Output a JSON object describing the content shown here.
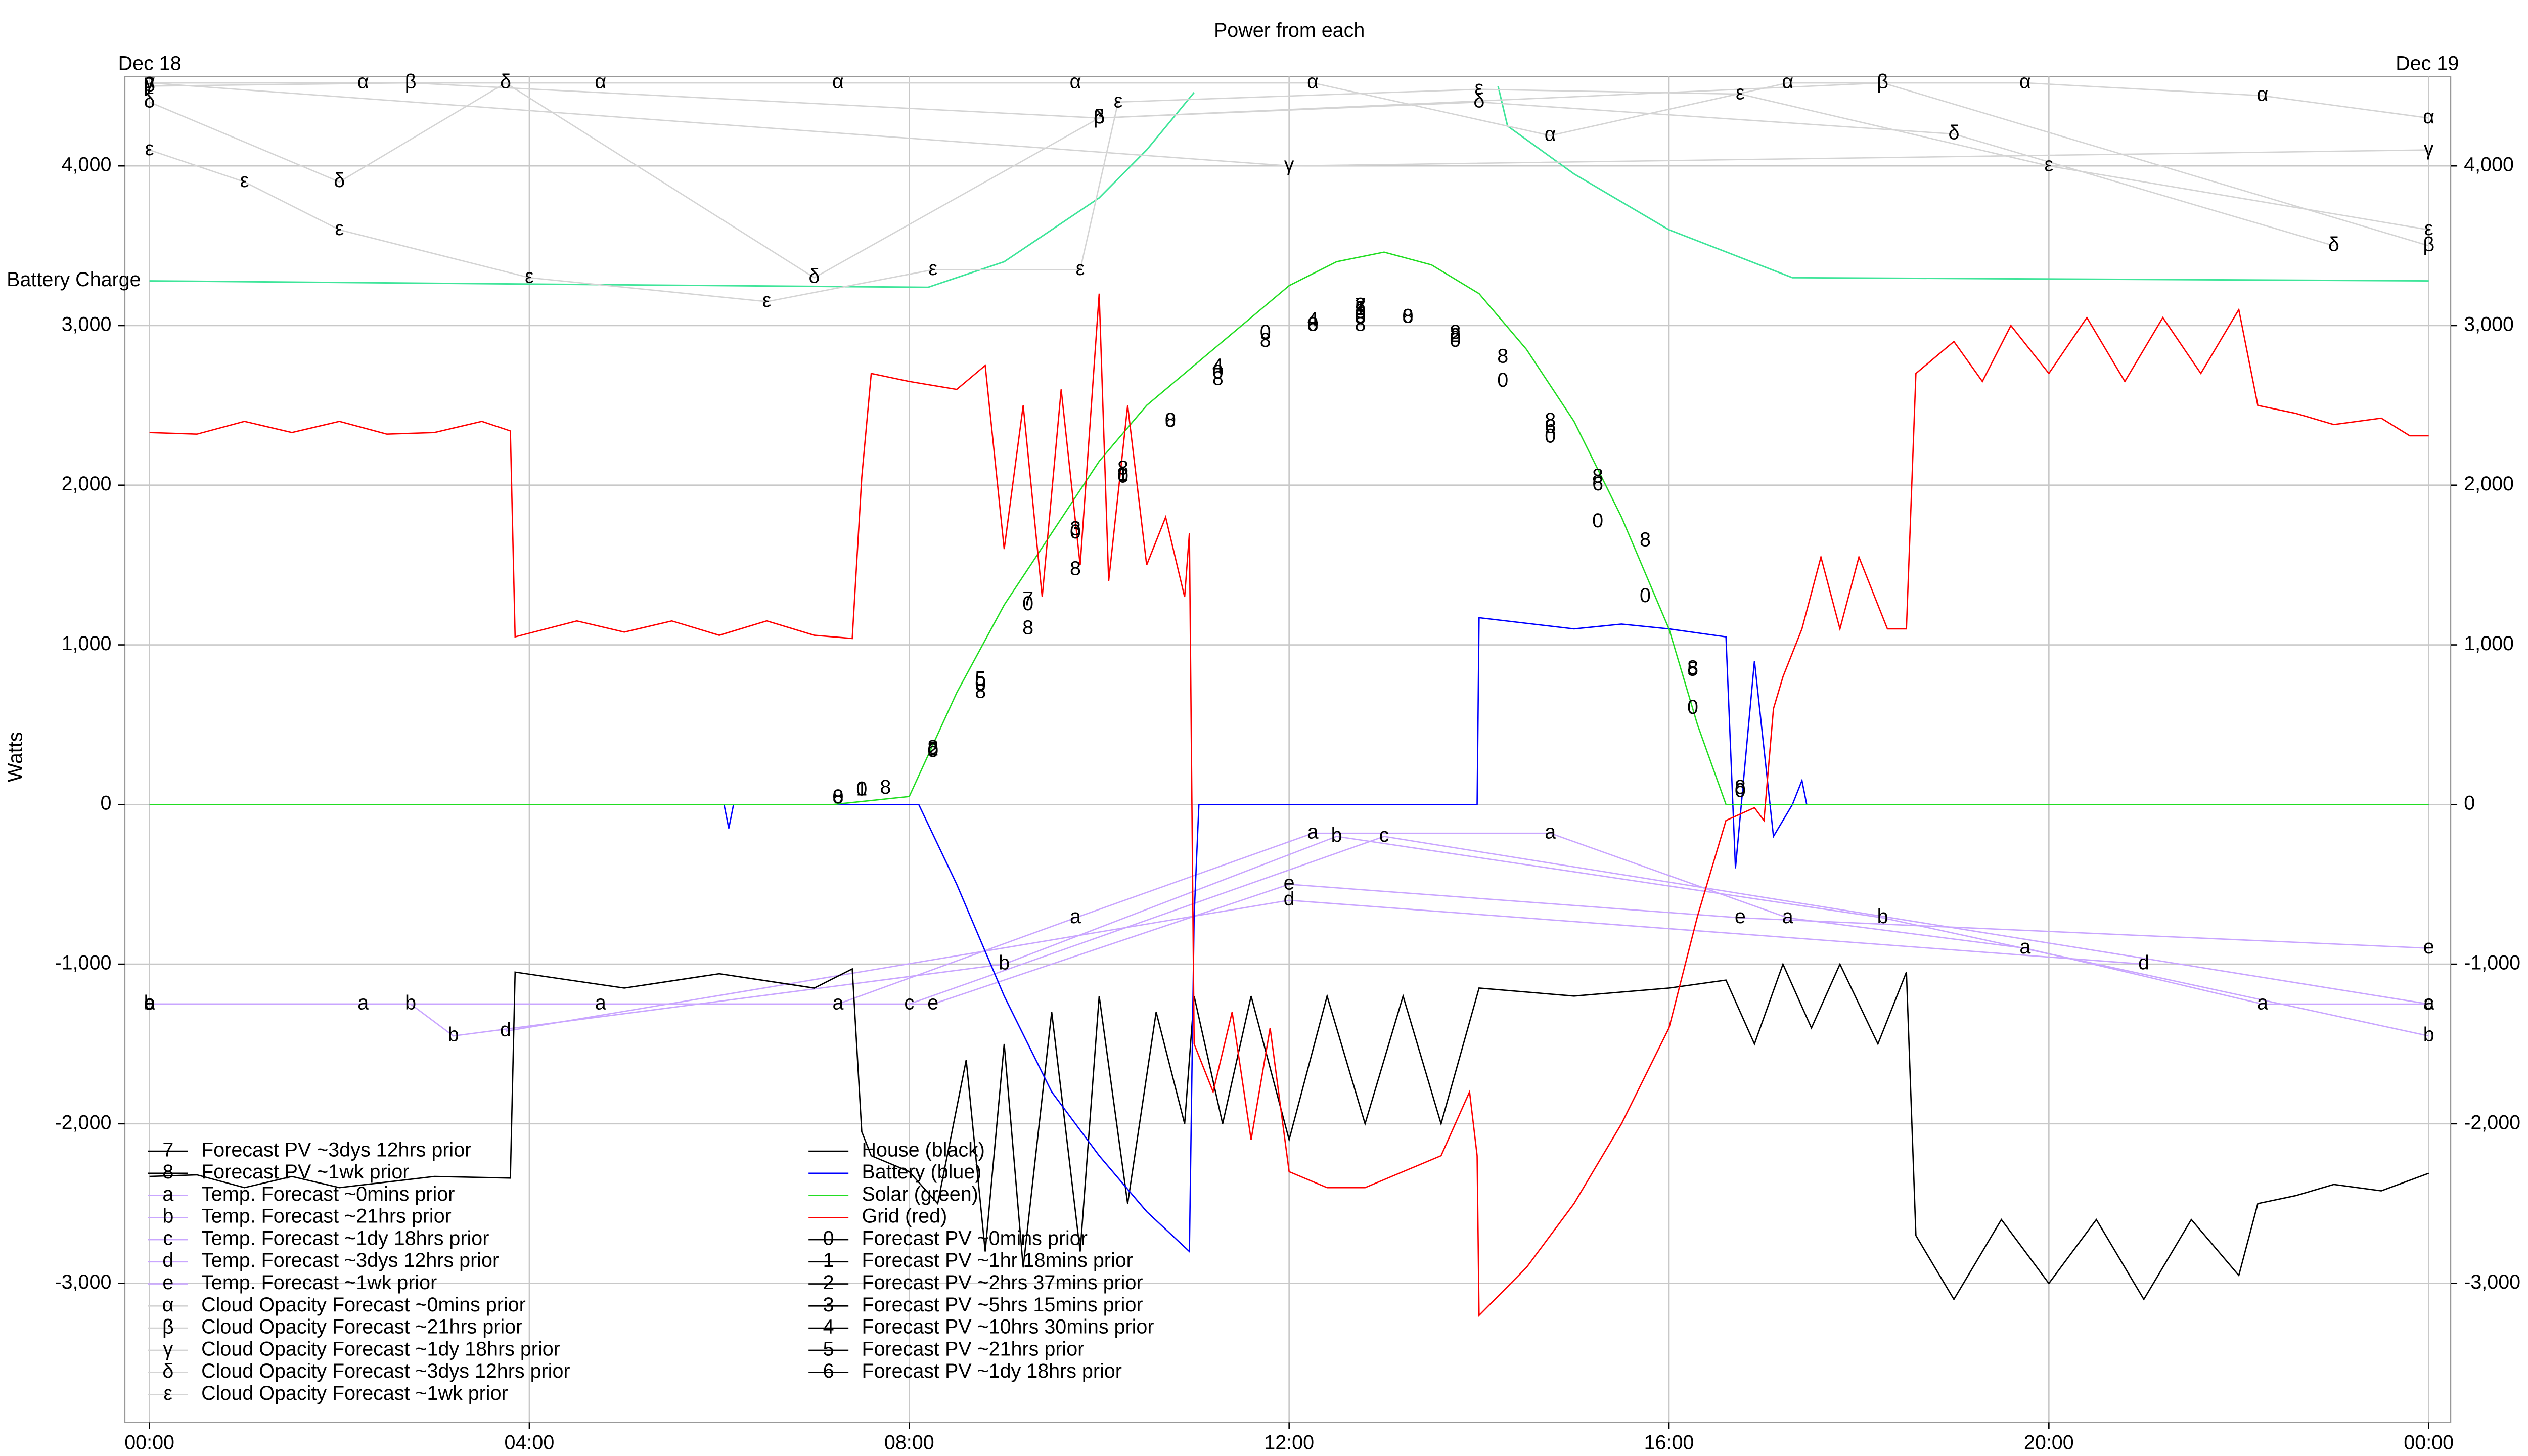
{
  "chart_data": {
    "type": "line",
    "title": "Power from each",
    "y_label": "Watts",
    "date_labels": [
      "Dec 18",
      "Dec 19"
    ],
    "xlim": [
      -0.26,
      24.23
    ],
    "ylim": [
      -3870,
      4560
    ],
    "grid": true,
    "xticks": [
      {
        "value": 0,
        "label": "00:00"
      },
      {
        "value": 4,
        "label": "04:00"
      },
      {
        "value": 8,
        "label": "08:00"
      },
      {
        "value": 12,
        "label": "12:00"
      },
      {
        "value": 16,
        "label": "16:00"
      },
      {
        "value": 20,
        "label": "20:00"
      },
      {
        "value": 24,
        "label": "00:00"
      }
    ],
    "yticks": [
      {
        "value": -3000,
        "label": "-3,000"
      },
      {
        "value": -2000,
        "label": "-2,000"
      },
      {
        "value": -1000,
        "label": "-1,000"
      },
      0,
      {
        "value": 1000,
        "label": "1,000"
      },
      {
        "value": 2000,
        "label": "2,000"
      },
      {
        "value": 3000,
        "label": "3,000"
      },
      {
        "value": 4000,
        "label": "4,000"
      }
    ],
    "battery_charge": {
      "name": "Battery Charge",
      "color": "#3fe59a",
      "x": [
        0,
        4,
        8.2,
        9,
        10,
        10.5,
        11,
        11.1,
        14.2,
        14.3,
        15,
        16,
        17.3,
        24
      ],
      "values": [
        3280,
        3260,
        3240,
        3400,
        3800,
        4100,
        4460,
        null,
        4500,
        4250,
        3950,
        3600,
        3300,
        3280
      ]
    },
    "series": [
      {
        "name": "Forecast PV ~3dys 12hrs prior",
        "marker": "7",
        "color": "#000000",
        "x": [
          9.25,
          12.75
        ],
        "values": [
          1280,
          3120
        ]
      },
      {
        "name": "Forecast PV ~1wk prior",
        "marker": "8",
        "color": "#000000",
        "x": [
          7.25,
          7.75,
          8.25,
          8.75,
          9.25,
          9.75,
          10.25,
          10.75,
          11.25,
          11.75,
          12.25,
          12.75,
          13.25,
          13.75,
          14.25,
          14.75,
          15.25,
          15.75,
          16.25,
          16.75
        ],
        "values": [
          40,
          100,
          350,
          700,
          1100,
          1470,
          2100,
          2400,
          2660,
          2900,
          3000,
          3000,
          3050,
          2950,
          2800,
          2400,
          2050,
          1650,
          850,
          100
        ]
      },
      {
        "name": "Temp. Forecast ~0mins prior",
        "marker": "a",
        "color": "#c9a6ff",
        "x": [
          0,
          2.25,
          4.75,
          7.25,
          9.75,
          12.25,
          14.75,
          17.25,
          19.75,
          22.25,
          24
        ],
        "values": [
          -1250,
          -1250,
          -1250,
          -1250,
          -710,
          -180,
          -180,
          -710,
          -900,
          -1250,
          -1250
        ]
      },
      {
        "name": "Temp. Forecast ~21hrs prior",
        "marker": "b",
        "color": "#c9a6ff",
        "x": [
          0,
          2.75,
          3.2,
          9,
          12.5,
          18.25,
          24
        ],
        "values": [
          -1250,
          -1250,
          -1450,
          -1000,
          -200,
          -710,
          -1450
        ]
      },
      {
        "name": "Temp. Forecast ~1dy 18hrs prior",
        "marker": "c",
        "color": "#c9a6ff",
        "x": [
          0,
          8,
          13,
          24
        ],
        "values": [
          -1250,
          -1250,
          -200,
          -1250
        ]
      },
      {
        "name": "Temp. Forecast ~3dys 12hrs prior",
        "marker": "d",
        "color": "#c9a6ff",
        "x": [
          3.75,
          12,
          21
        ],
        "values": [
          -1420,
          -600,
          -1000
        ]
      },
      {
        "name": "Temp. Forecast ~1wk prior",
        "marker": "e",
        "color": "#c9a6ff",
        "x": [
          0,
          8.25,
          12,
          16.75,
          24
        ],
        "values": [
          -1250,
          -1250,
          -500,
          -710,
          -900
        ]
      },
      {
        "name": "Cloud Opacity Forecast ~0mins prior",
        "marker": "α",
        "color": "#d4d4d4",
        "x": [
          0,
          2.25,
          4.75,
          7.25,
          9.75,
          12.25,
          14.75,
          17.25,
          19.75,
          22.25,
          24
        ],
        "values": [
          4520,
          4520,
          4520,
          4520,
          4520,
          4520,
          4190,
          4520,
          4520,
          4440,
          4300
        ]
      },
      {
        "name": "Cloud Opacity Forecast ~21hrs prior",
        "marker": "β",
        "color": "#d4d4d4",
        "x": [
          0,
          2.75,
          10,
          18.25,
          24
        ],
        "values": [
          4500,
          4520,
          4300,
          4520,
          3500
        ]
      },
      {
        "name": "Cloud Opacity Forecast ~1dy 18hrs prior",
        "marker": "γ",
        "color": "#d4d4d4",
        "x": [
          0,
          12,
          24
        ],
        "values": [
          4520,
          4000,
          4100
        ]
      },
      {
        "name": "Cloud Opacity Forecast ~3dys 12hrs prior",
        "marker": "δ",
        "color": "#d4d4d4",
        "x": [
          0,
          2,
          3.75,
          7,
          10,
          14,
          19,
          23
        ],
        "values": [
          4400,
          3900,
          4520,
          3300,
          4300,
          4400,
          4200,
          3500
        ]
      },
      {
        "name": "Cloud Opacity Forecast ~1wk prior",
        "marker": "ε",
        "color": "#d4d4d4",
        "x": [
          0,
          1,
          2,
          4,
          6.5,
          8.25,
          9.8,
          10.2,
          14,
          16.75,
          20,
          24
        ],
        "values": [
          4100,
          3900,
          3600,
          3300,
          3150,
          3350,
          3350,
          4400,
          4480,
          4450,
          4000,
          3600
        ]
      },
      {
        "name": "House (black)",
        "color": "#000000",
        "x": [
          0,
          0.5,
          1,
          1.5,
          2,
          3,
          3.8,
          3.85,
          5,
          6,
          7,
          7.4,
          7.5,
          7.6,
          8,
          8.3,
          8.6,
          8.8,
          9,
          9.2,
          9.5,
          9.8,
          10,
          10.3,
          10.6,
          10.9,
          11,
          11.3,
          11.6,
          12,
          12.4,
          12.8,
          13.2,
          13.6,
          14,
          15,
          16,
          16.6,
          16.9,
          17.2,
          17.5,
          17.8,
          18.2,
          18.5,
          18.6,
          19,
          19.5,
          20,
          20.5,
          21,
          21.5,
          22,
          22.2,
          22.6,
          23,
          23.5,
          24
        ],
        "values": [
          -2330,
          -2320,
          -2400,
          -2330,
          -2400,
          -2330,
          -2340,
          -1050,
          -1150,
          -1060,
          -1150,
          -1030,
          -2050,
          -2200,
          -2300,
          -2500,
          -1600,
          -2800,
          -1500,
          -2900,
          -1300,
          -2800,
          -1200,
          -2500,
          -1300,
          -2000,
          -1200,
          -2000,
          -1200,
          -2100,
          -1200,
          -2000,
          -1200,
          -2000,
          -1150,
          -1200,
          -1150,
          -1100,
          -1500,
          -1000,
          -1400,
          -1000,
          -1500,
          -1050,
          -2700,
          -3100,
          -2600,
          -3000,
          -2600,
          -3100,
          -2600,
          -2950,
          -2500,
          -2450,
          -2380,
          -2420,
          -2310
        ]
      },
      {
        "name": "Battery (blue)",
        "color": "#0000ff",
        "x": [
          0,
          6.05,
          6.1,
          6.15,
          7.2,
          8.1,
          8.5,
          9,
          9.5,
          10,
          10.5,
          10.95,
          11,
          11.05,
          13.98,
          14,
          15,
          15.5,
          16,
          16.6,
          16.7,
          16.9,
          17.1,
          17.3,
          17.4,
          17.45,
          24
        ],
        "values": [
          0,
          0,
          -150,
          0,
          0,
          0,
          -500,
          -1200,
          -1800,
          -2200,
          -2550,
          -2800,
          -700,
          0,
          0,
          1170,
          1100,
          1130,
          1100,
          1050,
          -400,
          900,
          -200,
          0,
          150,
          0,
          0
        ]
      },
      {
        "name": "Solar (green)",
        "color": "#22dd22",
        "x": [
          0,
          7.2,
          8,
          8.5,
          9,
          9.5,
          10,
          10.5,
          11,
          11.5,
          12,
          12.5,
          13,
          13.5,
          14,
          14.5,
          15,
          15.5,
          16,
          16.3,
          16.6,
          24
        ],
        "values": [
          0,
          0,
          50,
          700,
          1250,
          1700,
          2150,
          2500,
          2750,
          3000,
          3250,
          3400,
          3460,
          3380,
          3200,
          2850,
          2400,
          1800,
          1100,
          500,
          0,
          0
        ]
      },
      {
        "name": "Grid (red)",
        "color": "#ff0000",
        "x": [
          0,
          0.5,
          1,
          1.5,
          2,
          2.5,
          3,
          3.5,
          3.8,
          3.85,
          4.5,
          5,
          5.5,
          6,
          6.5,
          7,
          7.4,
          7.5,
          7.6,
          8,
          8.5,
          8.8,
          9,
          9.2,
          9.4,
          9.6,
          9.8,
          10,
          10.1,
          10.3,
          10.5,
          10.7,
          10.9,
          10.95,
          11,
          11.2,
          11.4,
          11.6,
          11.8,
          12,
          12.4,
          12.8,
          13.2,
          13.6,
          13.9,
          13.98,
          14,
          14.5,
          15,
          15.5,
          16,
          16.3,
          16.6,
          16.9,
          17,
          17.1,
          17.2,
          17.4,
          17.6,
          17.8,
          18,
          18.3,
          18.5,
          18.6,
          19,
          19.3,
          19.6,
          20,
          20.4,
          20.8,
          21.2,
          21.6,
          22,
          22.2,
          22.6,
          23,
          23.5,
          23.8,
          24
        ],
        "values": [
          2330,
          2320,
          2400,
          2330,
          2400,
          2320,
          2330,
          2400,
          2340,
          1050,
          1150,
          1080,
          1150,
          1060,
          1150,
          1060,
          1040,
          2050,
          2700,
          2650,
          2600,
          2750,
          1600,
          2500,
          1300,
          2600,
          1500,
          3200,
          1400,
          2500,
          1500,
          1800,
          1300,
          1700,
          -1500,
          -1800,
          -1300,
          -2100,
          -1400,
          -2300,
          -2400,
          -2400,
          -2300,
          -2200,
          -1800,
          -2200,
          -3200,
          -2900,
          -2500,
          -2000,
          -1400,
          -700,
          -100,
          -20,
          -100,
          600,
          800,
          1100,
          1550,
          1100,
          1550,
          1100,
          1100,
          2700,
          2900,
          2650,
          3000,
          2700,
          3050,
          2650,
          3050,
          2700,
          3100,
          2500,
          2450,
          2380,
          2420,
          2310,
          2310
        ]
      },
      {
        "name": "Forecast PV ~0mins prior",
        "marker": "0",
        "color": "#000000",
        "x": [
          7.25,
          7.5,
          8.25,
          8.75,
          9.25,
          9.75,
          10.25,
          10.75,
          11.25,
          11.75,
          12.25,
          12.75,
          13.25,
          13.75,
          14.25,
          14.75,
          15.25,
          15.75,
          16.25,
          16.75
        ],
        "values": [
          40,
          90,
          330,
          750,
          1250,
          1700,
          2050,
          2400,
          2700,
          2950,
          3000,
          3050,
          3050,
          2900,
          2650,
          2300,
          1770,
          1300,
          600,
          80
        ]
      },
      {
        "name": "Forecast PV ~1hr 18mins prior",
        "marker": "1",
        "color": "#000000",
        "x": [
          7.5,
          10.25,
          12.75
        ],
        "values": [
          90,
          2060,
          3100
        ]
      },
      {
        "name": "Forecast PV ~2hrs 37mins prior",
        "marker": "2",
        "color": "#000000",
        "x": [
          8.25,
          12.75,
          13.75
        ],
        "values": [
          340,
          3120,
          2930
        ]
      },
      {
        "name": "Forecast PV ~5hrs 15mins prior",
        "marker": "3",
        "color": "#000000",
        "x": [
          9.75,
          12.75
        ],
        "values": [
          1720,
          3080
        ]
      },
      {
        "name": "Forecast PV ~10hrs 30mins prior",
        "marker": "4",
        "color": "#000000",
        "x": [
          11.25,
          12.25
        ],
        "values": [
          2740,
          3030
        ]
      },
      {
        "name": "Forecast PV ~21hrs prior",
        "marker": "5",
        "color": "#000000",
        "x": [
          8.75,
          12.75,
          16.25
        ],
        "values": [
          780,
          3100,
          840
        ]
      },
      {
        "name": "Forecast PV ~1dy 18hrs prior",
        "marker": "6",
        "color": "#000000",
        "x": [
          14.75,
          15.25
        ],
        "values": [
          2360,
          2000
        ]
      }
    ]
  }
}
